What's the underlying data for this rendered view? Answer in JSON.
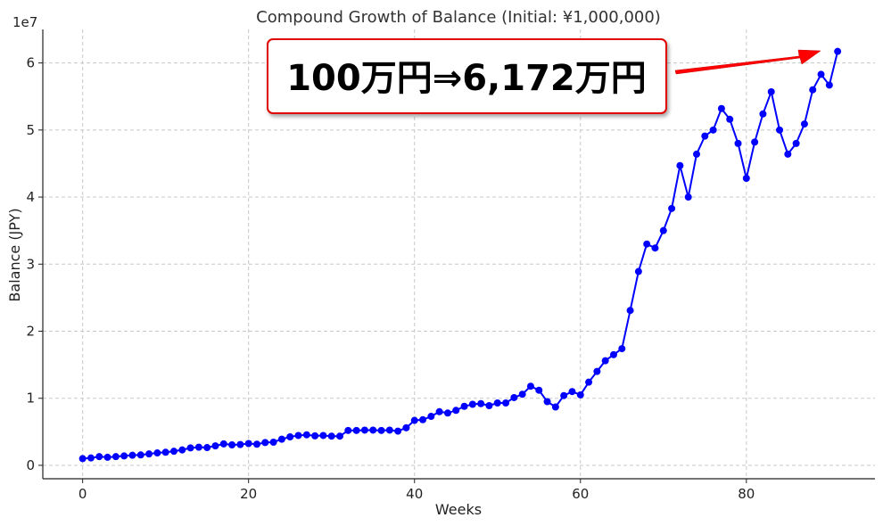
{
  "chart_data": {
    "type": "line",
    "title": "Compound Growth of Balance (Initial: ¥1,000,000)",
    "xlabel": "Weeks",
    "ylabel": "Balance (JPY)",
    "y_offset_label": "1e7",
    "xlim": [
      -4.8,
      95.5
    ],
    "ylim": [
      -2000000,
      65000000
    ],
    "x_ticks": [
      0,
      20,
      40,
      60,
      80
    ],
    "y_ticks": [
      0,
      10000000,
      20000000,
      30000000,
      40000000,
      50000000,
      60000000
    ],
    "y_tick_labels": [
      "0",
      "1",
      "2",
      "3",
      "4",
      "5",
      "6"
    ],
    "grid": true,
    "series": [
      {
        "color": "#0000ff",
        "marker": "circle",
        "x": [
          0,
          1,
          2,
          3,
          4,
          5,
          6,
          7,
          8,
          9,
          10,
          11,
          12,
          13,
          14,
          15,
          16,
          17,
          18,
          19,
          20,
          21,
          22,
          23,
          24,
          25,
          26,
          27,
          28,
          29,
          30,
          31,
          32,
          33,
          34,
          35,
          36,
          37,
          38,
          39,
          40,
          41,
          42,
          43,
          44,
          45,
          46,
          47,
          48,
          49,
          50,
          51,
          52,
          53,
          54,
          55,
          56,
          57,
          58,
          59,
          60,
          61,
          62,
          63,
          64,
          65,
          66,
          67,
          68,
          69,
          70,
          71,
          72,
          73,
          74,
          75,
          76,
          77,
          78,
          79,
          80,
          81,
          82,
          83,
          84,
          85,
          86,
          87,
          88,
          89,
          90,
          91
        ],
        "values": [
          1000000,
          1100000,
          1300000,
          1200000,
          1300000,
          1400000,
          1500000,
          1550000,
          1700000,
          1850000,
          1950000,
          2100000,
          2300000,
          2600000,
          2700000,
          2650000,
          2900000,
          3200000,
          3050000,
          3100000,
          3250000,
          3150000,
          3400000,
          3450000,
          3900000,
          4250000,
          4450000,
          4550000,
          4400000,
          4450000,
          4350000,
          4350000,
          5200000,
          5200000,
          5250000,
          5250000,
          5200000,
          5250000,
          5100000,
          5600000,
          6700000,
          6800000,
          7300000,
          8000000,
          7800000,
          8200000,
          8800000,
          9100000,
          9200000,
          8900000,
          9300000,
          9300000,
          10100000,
          10600000,
          11800000,
          11200000,
          9500000,
          8700000,
          10400000,
          11000000,
          10500000,
          12400000,
          14000000,
          15600000,
          16500000,
          17400000,
          23100000,
          28900000,
          33000000,
          32400000,
          35000000,
          38300000,
          44700000,
          40000000,
          46400000,
          49100000,
          50000000,
          53200000,
          51600000,
          48000000,
          42800000,
          48200000,
          52400000,
          55700000,
          50000000,
          46400000,
          48000000,
          50900000,
          56000000,
          58300000,
          56700000,
          61720000
        ]
      }
    ],
    "annotation": {
      "text": "100万円⇒6,172万円",
      "border_color": "#e00000",
      "arrow_color": "#ff0000"
    }
  }
}
